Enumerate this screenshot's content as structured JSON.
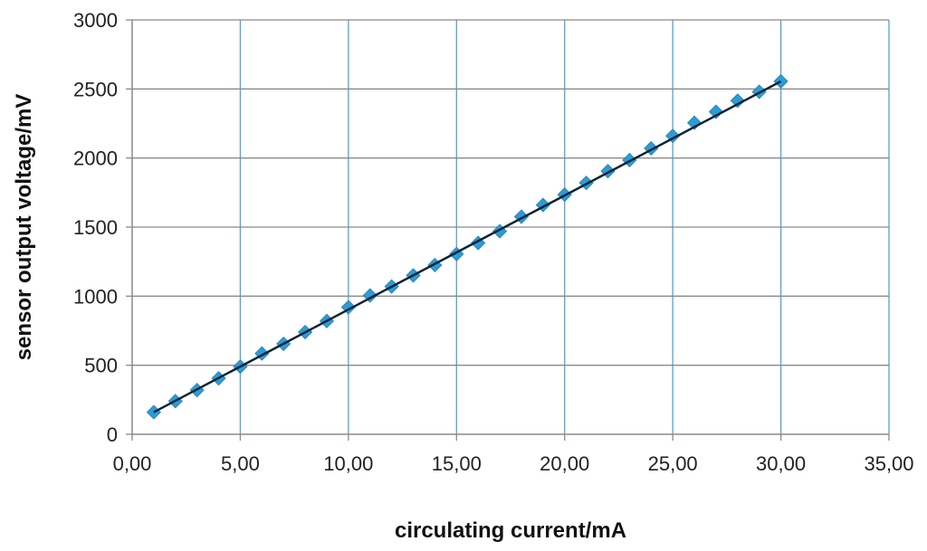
{
  "chart_data": {
    "type": "scatter",
    "title": "",
    "xlabel": "circulating current/mA",
    "ylabel": "sensor output voltage/mV",
    "xlim": [
      0,
      35
    ],
    "ylim": [
      0,
      3000
    ],
    "x_ticks": [
      0,
      5,
      10,
      15,
      20,
      25,
      30,
      35
    ],
    "x_tick_labels": [
      "0,00",
      "5,00",
      "10,00",
      "15,00",
      "20,00",
      "25,00",
      "30,00",
      "35,00"
    ],
    "y_ticks": [
      0,
      500,
      1000,
      1500,
      2000,
      2500,
      3000
    ],
    "y_tick_labels": [
      "0",
      "500",
      "1000",
      "1500",
      "2000",
      "2500",
      "3000"
    ],
    "grid": true,
    "legend": "none",
    "series": [
      {
        "marker": "diamond",
        "color": "#2e9bd6",
        "x": [
          1,
          2,
          3,
          4,
          5,
          6,
          7,
          8,
          9,
          10,
          11,
          12,
          13,
          14,
          15,
          16,
          17,
          18,
          19,
          20,
          21,
          22,
          23,
          24,
          25,
          26,
          27,
          28,
          29,
          30
        ],
        "y": [
          160,
          240,
          320,
          405,
          490,
          585,
          655,
          740,
          820,
          920,
          1005,
          1070,
          1150,
          1225,
          1305,
          1385,
          1470,
          1575,
          1660,
          1735,
          1820,
          1905,
          1985,
          2070,
          2160,
          2255,
          2335,
          2415,
          2480,
          2555
        ]
      }
    ],
    "trendline": {
      "color": "#0b2433",
      "x": [
        1,
        30
      ],
      "y": [
        160,
        2555
      ]
    }
  }
}
